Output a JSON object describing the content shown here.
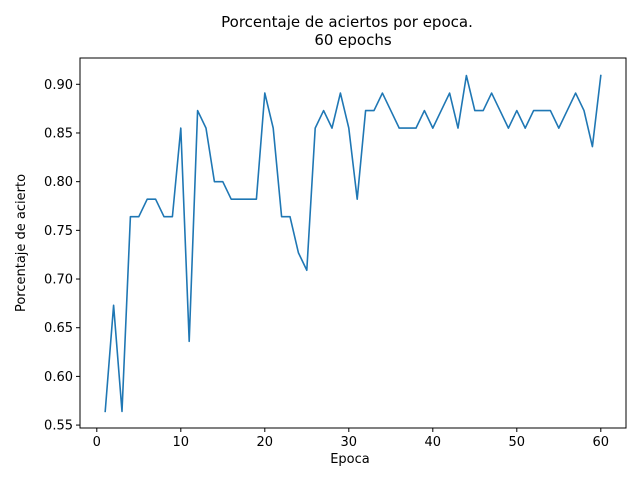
{
  "chart_data": {
    "type": "line",
    "title": "Porcentaje de aciertos por epoca.",
    "subtitle": "60 epochs",
    "xlabel": "Epoca",
    "ylabel": "Porcentaje de acierto",
    "xlim": [
      -2,
      63
    ],
    "ylim": [
      0.547,
      0.927
    ],
    "xticks": [
      0,
      10,
      20,
      30,
      40,
      50,
      60
    ],
    "xtick_labels": [
      "0",
      "10",
      "20",
      "30",
      "40",
      "50",
      "60"
    ],
    "yticks": [
      0.55,
      0.6,
      0.65,
      0.7,
      0.75,
      0.8,
      0.85,
      0.9
    ],
    "ytick_labels": [
      "0.55",
      "0.60",
      "0.65",
      "0.70",
      "0.75",
      "0.80",
      "0.85",
      "0.90"
    ],
    "grid": false,
    "color": "#1f77b4",
    "series": [
      {
        "x": [
          1,
          2,
          3,
          4,
          5,
          6,
          7,
          8,
          9,
          10,
          11,
          12,
          13,
          14,
          15,
          16,
          17,
          18,
          19,
          20,
          21,
          22,
          23,
          24,
          25,
          26,
          27,
          28,
          29,
          30,
          31,
          32,
          33,
          34,
          35,
          36,
          37,
          38,
          39,
          40,
          41,
          42,
          43,
          44,
          45,
          46,
          47,
          48,
          49,
          50,
          51,
          52,
          53,
          54,
          55,
          56,
          57,
          58,
          59,
          60
        ],
        "values": [
          0.564,
          0.673,
          0.564,
          0.764,
          0.764,
          0.782,
          0.782,
          0.764,
          0.764,
          0.855,
          0.636,
          0.873,
          0.855,
          0.8,
          0.8,
          0.782,
          0.782,
          0.782,
          0.782,
          0.891,
          0.855,
          0.764,
          0.764,
          0.727,
          0.709,
          0.855,
          0.873,
          0.855,
          0.891,
          0.855,
          0.782,
          0.873,
          0.873,
          0.891,
          0.873,
          0.855,
          0.855,
          0.855,
          0.873,
          0.855,
          0.873,
          0.891,
          0.855,
          0.909,
          0.873,
          0.873,
          0.891,
          0.873,
          0.855,
          0.873,
          0.855,
          0.873,
          0.873,
          0.873,
          0.855,
          0.873,
          0.891,
          0.873,
          0.836,
          0.909
        ]
      }
    ]
  }
}
